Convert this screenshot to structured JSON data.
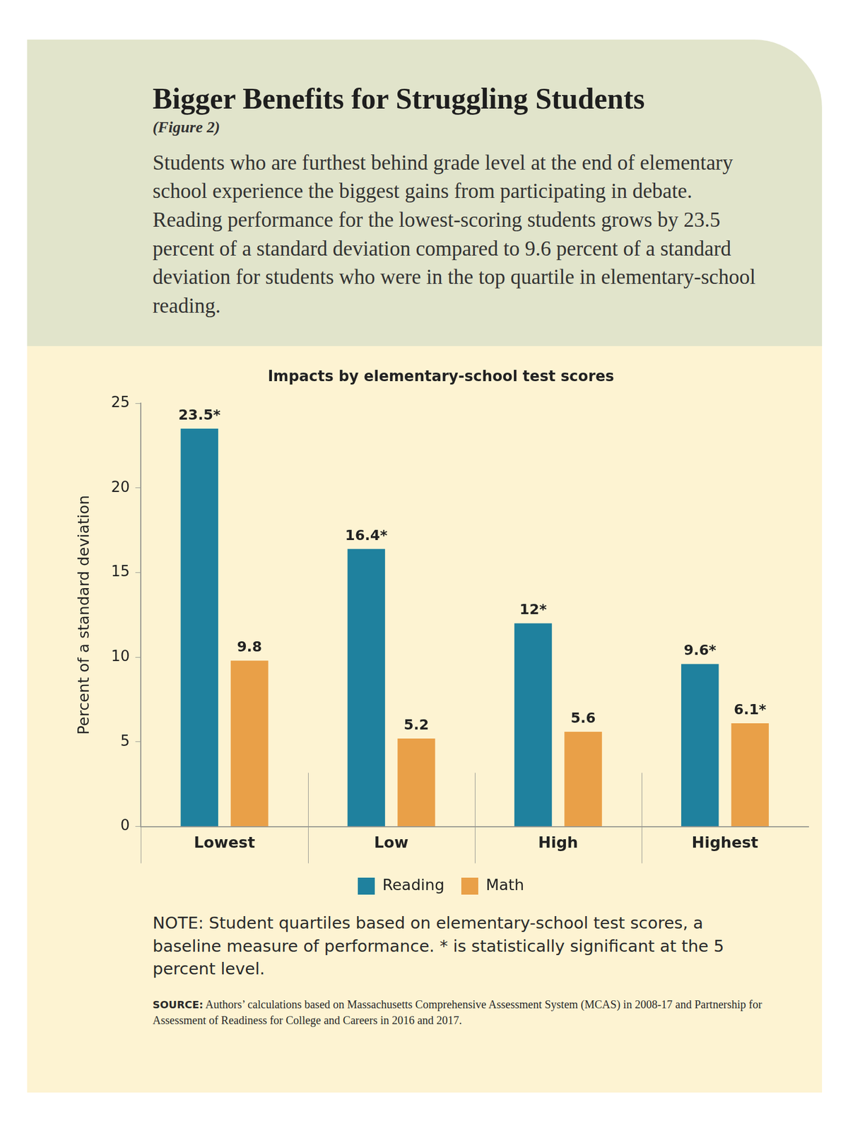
{
  "header": {
    "title": "Bigger Benefits for Struggling Students",
    "figure": "(Figure 2)",
    "text": "Students who are furthest behind grade level at the end of elementary school experience the biggest gains from participating in debate. Reading performance for the lowest-scoring students grows by 23.5 percent of a standard deviation compared to 9.6 percent of a standard deviation for students who were in the top quartile in elementary-school reading."
  },
  "chart_data": {
    "type": "bar",
    "title": "Impacts by elementary-school test scores",
    "y_label": "Percent of a standard deviation",
    "categories": [
      "Lowest",
      "Low",
      "High",
      "Highest"
    ],
    "series": [
      {
        "name": "Reading",
        "color": "#1f819e",
        "values": [
          23.5,
          16.4,
          12,
          9.6
        ],
        "value_labels": [
          "23.5*",
          "16.4*",
          "12*",
          "9.6*"
        ]
      },
      {
        "name": "Math",
        "color": "#e9a048",
        "values": [
          9.8,
          5.2,
          5.6,
          6.1
        ],
        "value_labels": [
          "9.8",
          "5.2",
          "5.6",
          "6.1*"
        ]
      }
    ],
    "ylim": [
      0,
      25
    ],
    "yticks": [
      0,
      5,
      10,
      15,
      20,
      25
    ],
    "grid": false,
    "legend": "bottom",
    "data_labels": true
  },
  "footer": {
    "note": "NOTE: Student quartiles based on elementary-school test scores, a baseline measure of performance. * is statistically significant at the 5 percent level.",
    "source_label": "SOURCE:",
    "source": "Authors’ calculations based on Massachusetts Comprehensive Assessment System (MCAS) in 2008-17 and Partnership for Assessment of Readiness for College and Careers in 2016 and 2017."
  }
}
